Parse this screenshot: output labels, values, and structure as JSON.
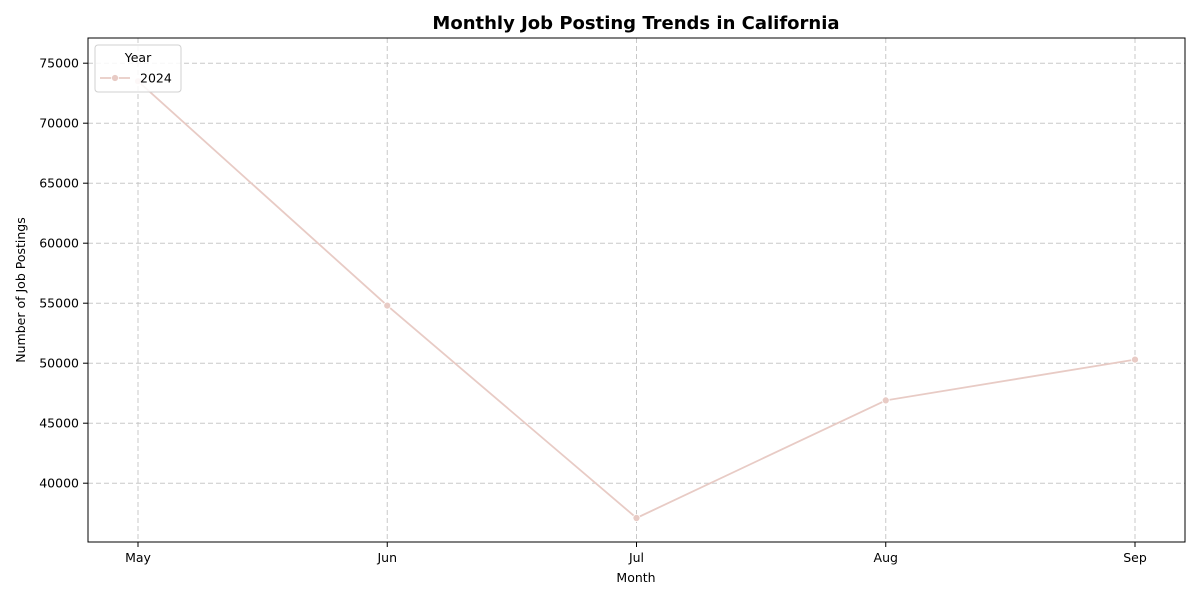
{
  "chart_data": {
    "type": "line",
    "title": "Monthly Job Posting Trends in California",
    "xlabel": "Month",
    "ylabel": "Number of Job Postings",
    "categories": [
      "May",
      "Jun",
      "Jul",
      "Aug",
      "Sep"
    ],
    "series": [
      {
        "name": "2024",
        "values": [
          73500,
          54800,
          37100,
          46900,
          50300
        ],
        "color": "#e8cbc5"
      }
    ],
    "ylim": [
      35100,
      77100
    ],
    "yticks": [
      40000,
      45000,
      50000,
      55000,
      60000,
      65000,
      70000,
      75000
    ],
    "ytick_labels": [
      "40000",
      "45000",
      "50000",
      "55000",
      "60000",
      "65000",
      "70000",
      "75000"
    ],
    "grid": true,
    "legend": {
      "title": "Year",
      "placement": "top-left"
    }
  }
}
